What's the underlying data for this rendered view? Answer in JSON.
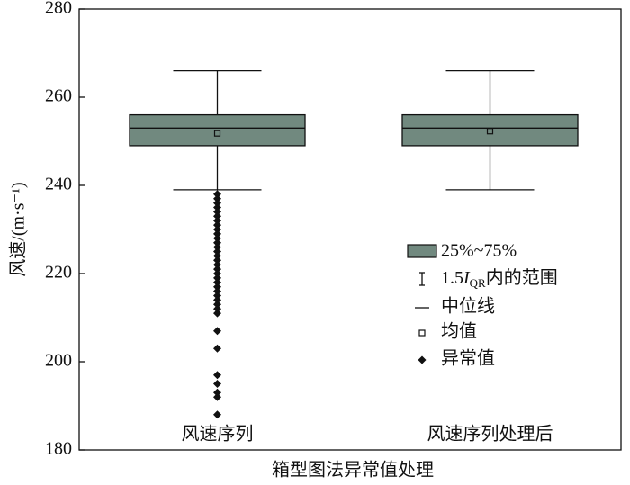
{
  "chart_data": {
    "type": "box",
    "xlabel": "箱型图法异常值处理",
    "ylabel": "风速/(m·s⁻¹)",
    "categories": [
      "风速序列",
      "风速序列处理后"
    ],
    "boxes": [
      {
        "whisker_low": 239,
        "q1": 249,
        "median": 253,
        "q3": 256,
        "whisker_high": 266,
        "mean": 251.8,
        "outliers": [
          238,
          237,
          236,
          235,
          234,
          233,
          232,
          231,
          230,
          229,
          228,
          227,
          226,
          225,
          224,
          223,
          222,
          221,
          220,
          219,
          218,
          217,
          216,
          215,
          214,
          213,
          212,
          211,
          207,
          203,
          197,
          195,
          193,
          192,
          188
        ]
      },
      {
        "whisker_low": 239,
        "q1": 249,
        "median": 253,
        "q3": 256,
        "whisker_high": 266,
        "mean": 252.3,
        "outliers": []
      }
    ],
    "color": "#71897f",
    "ylim": [
      180,
      280
    ],
    "yticks": [
      180,
      200,
      220,
      240,
      260,
      280
    ],
    "legend": {
      "box": "25%~75%",
      "whisker": {
        "prefix": "1.5",
        "italic": "I",
        "sub": "QR",
        "suffix": "内的范围"
      },
      "median": "中位线",
      "mean": "均值",
      "outlier": "异常值"
    }
  }
}
